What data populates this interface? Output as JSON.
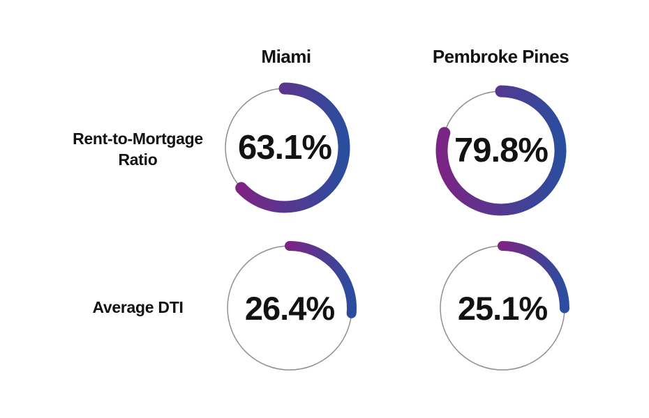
{
  "grid": {
    "col_headers": [
      "Miami",
      "Pembroke Pines"
    ],
    "row_headers": [
      {
        "lines": [
          "Rent-to-Mortgage",
          "Ratio"
        ]
      },
      {
        "lines": [
          "Average DTI"
        ]
      }
    ],
    "cells": [
      {
        "column": "Miami",
        "row": "Rent-to-Mortgage Ratio",
        "value_pct": 63.1,
        "display": "63.1%"
      },
      {
        "column": "Pembroke Pines",
        "row": "Rent-to-Mortgage Ratio",
        "value_pct": 79.8,
        "display": "79.8%"
      },
      {
        "column": "Miami",
        "row": "Average DTI",
        "value_pct": 26.4,
        "display": "26.4%"
      },
      {
        "column": "Pembroke Pines",
        "row": "Average DTI",
        "value_pct": 25.1,
        "display": "25.1%"
      }
    ]
  },
  "colors": {
    "arc_gradient_start": "#7B2483",
    "arc_gradient_end": "#2B4D9E",
    "track": "#8F8F8F",
    "text": "#121212",
    "background": "#FFFFFF"
  },
  "chart_data": [
    {
      "type": "pie",
      "subtype": "donut-gauge",
      "title": "Miami — Rent-to-Mortgage Ratio",
      "labels": [
        "Rent-to-Mortgage Ratio",
        "remainder"
      ],
      "values": [
        63.1,
        36.9
      ],
      "center_label": "63.1%",
      "start_angle_deg": -90,
      "direction": "clockwise",
      "arc_colors": [
        "#7B2483",
        "#2B4D9E"
      ],
      "track_color": "#8F8F8F"
    },
    {
      "type": "pie",
      "subtype": "donut-gauge",
      "title": "Pembroke Pines — Rent-to-Mortgage Ratio",
      "labels": [
        "Rent-to-Mortgage Ratio",
        "remainder"
      ],
      "values": [
        79.8,
        20.2
      ],
      "center_label": "79.8%",
      "start_angle_deg": -90,
      "direction": "clockwise",
      "arc_colors": [
        "#7B2483",
        "#2B4D9E"
      ],
      "track_color": "#8F8F8F"
    },
    {
      "type": "pie",
      "subtype": "donut-gauge",
      "title": "Miami — Average DTI",
      "labels": [
        "Average DTI",
        "remainder"
      ],
      "values": [
        26.4,
        73.6
      ],
      "center_label": "26.4%",
      "start_angle_deg": -90,
      "direction": "clockwise",
      "arc_colors": [
        "#7B2483",
        "#2B4D9E"
      ],
      "track_color": "#8F8F8F"
    },
    {
      "type": "pie",
      "subtype": "donut-gauge",
      "title": "Pembroke Pines — Average DTI",
      "labels": [
        "Average DTI",
        "remainder"
      ],
      "values": [
        25.1,
        74.9
      ],
      "center_label": "25.1%",
      "start_angle_deg": -90,
      "direction": "clockwise",
      "arc_colors": [
        "#7B2483",
        "#2B4D9E"
      ],
      "track_color": "#8F8F8F"
    }
  ]
}
